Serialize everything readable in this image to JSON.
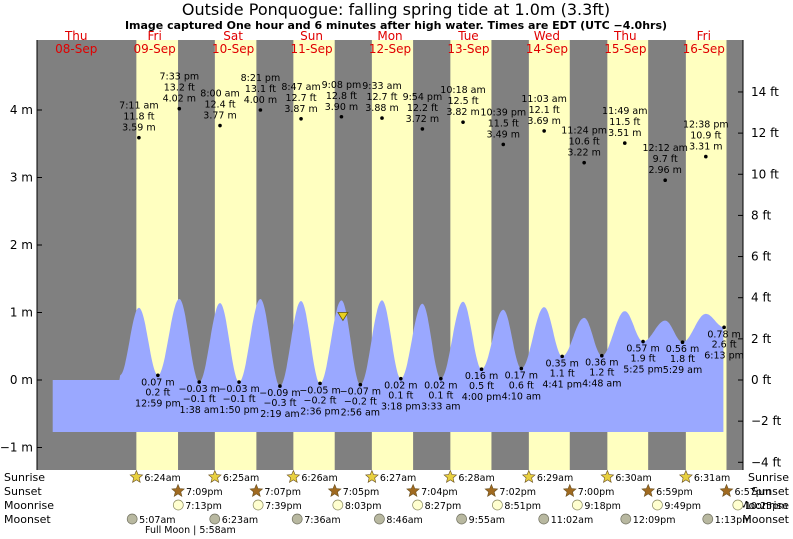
{
  "title": "Outside Ponquogue: falling  spring tide at 1.0m (3.3ft)",
  "subtitle": "Image captured One hour and 6 minutes after high water. Times are EDT (UTC −4.0hrs)",
  "colors": {
    "day": "#ffffc0",
    "night": "#808080",
    "water": "#9aa8ff",
    "marker": "#e8d020",
    "day_label": "#e00000",
    "sunrise": "#e8d040",
    "sunset": "#a06a20",
    "moonrise": "#ffffd0",
    "moonset": "#b8b8a0"
  },
  "days": [
    {
      "dow": "Thu",
      "date": "08-Sep"
    },
    {
      "dow": "Fri",
      "date": "09-Sep"
    },
    {
      "dow": "Sat",
      "date": "10-Sep"
    },
    {
      "dow": "Sun",
      "date": "11-Sep"
    },
    {
      "dow": "Mon",
      "date": "12-Sep"
    },
    {
      "dow": "Tue",
      "date": "13-Sep"
    },
    {
      "dow": "Wed",
      "date": "14-Sep"
    },
    {
      "dow": "Thu",
      "date": "15-Sep"
    },
    {
      "dow": "Fri",
      "date": "16-Sep"
    }
  ],
  "chart_data": {
    "type": "area",
    "title": "Outside Ponquogue: falling  spring tide at 1.0m (3.3ft)",
    "left_axis": {
      "unit": "m",
      "range": [
        -1.25,
        4.9
      ],
      "ticks": [
        -1,
        0,
        1,
        2,
        3,
        4
      ],
      "tick_labels": [
        "−1 m",
        "0 m",
        "1 m",
        "2 m",
        "3 m",
        "4 m"
      ]
    },
    "right_axis": {
      "unit": "ft",
      "ticks": [
        -4,
        -2,
        0,
        2,
        4,
        6,
        8,
        10,
        12,
        14
      ],
      "tick_labels": [
        "−4 ft",
        "−2 ft",
        "0 ft",
        "2 ft",
        "4 ft",
        "6 ft",
        "8 ft",
        "10 ft",
        "12 ft",
        "14 ft"
      ]
    },
    "plot_range_days": [
      0.2,
      8.75
    ],
    "current": {
      "t": 3.9,
      "h": 1.0
    },
    "sunrise_hours": [
      6.4,
      6.4167,
      6.4333,
      6.45,
      6.4667,
      6.4833,
      6.5,
      6.5167
    ],
    "sunset_hours": [
      19.15,
      19.1167,
      19.0833,
      19.0667,
      19.0333,
      19.0,
      18.9833,
      18.95
    ],
    "high_tides": [
      {
        "t": 1.299,
        "m": "3.59",
        "ft": "11.8 ft",
        "time": "7:11 am",
        "chart_m": 1.07
      },
      {
        "t": 1.814,
        "m": "4.02",
        "ft": "13.2 ft",
        "time": "7:33 pm",
        "chart_m": 1.2
      },
      {
        "t": 2.333,
        "m": "3.77",
        "ft": "12.4 ft",
        "time": "8:00 am",
        "chart_m": 1.14
      },
      {
        "t": 2.848,
        "m": "4.00",
        "ft": "13.1 ft",
        "time": "8:21 pm",
        "chart_m": 1.2
      },
      {
        "t": 3.366,
        "m": "3.87",
        "ft": "12.7 ft",
        "time": "8:47 am",
        "chart_m": 1.17
      },
      {
        "t": 3.881,
        "m": "3.90",
        "ft": "12.8 ft",
        "time": "9:08 pm",
        "chart_m": 1.18
      },
      {
        "t": 4.398,
        "m": "3.88",
        "ft": "12.7 ft",
        "time": "9:33 am",
        "chart_m": 1.18
      },
      {
        "t": 4.913,
        "m": "3.72",
        "ft": "12.2 ft",
        "time": "9:54 pm",
        "chart_m": 1.13
      },
      {
        "t": 5.431,
        "m": "3.82",
        "ft": "12.5 ft",
        "time": "10:18 am",
        "chart_m": 1.16
      },
      {
        "t": 5.944,
        "m": "3.49",
        "ft": "11.5 ft",
        "time": "10:39 pm",
        "chart_m": 1.04
      },
      {
        "t": 6.465,
        "m": "3.69",
        "ft": "12.1 ft",
        "time": "11:03 am",
        "chart_m": 1.08
      },
      {
        "t": 6.975,
        "m": "3.22",
        "ft": "10.6 ft",
        "time": "11:24 pm",
        "chart_m": 0.92
      },
      {
        "t": 7.493,
        "m": "3.51",
        "ft": "11.5 ft",
        "time": "11:49 am",
        "chart_m": 1.02
      },
      {
        "t": 8.008,
        "m": "2.96",
        "ft": "9.7 ft",
        "time": "12:12 am",
        "chart_m": 0.88
      },
      {
        "t": 8.526,
        "m": "3.31",
        "ft": "10.9 ft",
        "time": "12:38 pm",
        "chart_m": 0.98
      }
    ],
    "low_tides": [
      {
        "t": 1.541,
        "m": "0.07 m",
        "ft": "0.2 ft",
        "time": "12:59 pm"
      },
      {
        "t": 2.068,
        "m": "−0.03 m",
        "ft": "−0.1 ft",
        "time": "1:38 am"
      },
      {
        "t": 2.576,
        "m": "−0.03 m",
        "ft": "−0.1 ft",
        "time": "1:50 pm"
      },
      {
        "t": 3.097,
        "m": "−0.09 m",
        "ft": "−0.3 ft",
        "time": "2:19 am"
      },
      {
        "t": 3.608,
        "m": "−0.05 m",
        "ft": "−0.2 ft",
        "time": "2:36 pm"
      },
      {
        "t": 4.122,
        "m": "−0.07 m",
        "ft": "−0.2 ft",
        "time": "2:56 am"
      },
      {
        "t": 4.638,
        "m": "0.02 m",
        "ft": "0.1 ft",
        "time": "3:18 pm"
      },
      {
        "t": 5.148,
        "m": "0.02 m",
        "ft": "0.1 ft",
        "time": "3:33 am"
      },
      {
        "t": 5.667,
        "m": "0.16 m",
        "ft": "0.5 ft",
        "time": "4:00 pm"
      },
      {
        "t": 6.174,
        "m": "0.17 m",
        "ft": "0.6 ft",
        "time": "4:10 am"
      },
      {
        "t": 6.695,
        "m": "0.35 m",
        "ft": "1.1 ft",
        "time": "4:41 pm"
      },
      {
        "t": 7.2,
        "m": "0.36 m",
        "ft": "1.2 ft",
        "time": "4:48 am"
      },
      {
        "t": 7.726,
        "m": "0.57 m",
        "ft": "1.9 ft",
        "time": "5:25 pm"
      },
      {
        "t": 8.229,
        "m": "0.56 m",
        "ft": "1.8 ft",
        "time": "5:29 am"
      },
      {
        "t": 8.759,
        "m": "0.78 m",
        "ft": "2.6 ft",
        "time": "6:13 pm"
      }
    ]
  },
  "astro": {
    "row_labels": [
      "Sunrise",
      "Sunset",
      "Moonrise",
      "Moonset"
    ],
    "sunrise": [
      {
        "t": 1.267,
        "label": "6:24am"
      },
      {
        "t": 2.267,
        "label": "6:25am"
      },
      {
        "t": 3.268,
        "label": "6:26am"
      },
      {
        "t": 4.269,
        "label": "6:27am"
      },
      {
        "t": 5.269,
        "label": "6:28am"
      },
      {
        "t": 6.27,
        "label": "6:29am"
      },
      {
        "t": 7.271,
        "label": "6:30am"
      },
      {
        "t": 8.272,
        "label": "6:31am"
      }
    ],
    "sunset": [
      {
        "t": 1.798,
        "label": "7:09pm"
      },
      {
        "t": 2.796,
        "label": "7:07pm"
      },
      {
        "t": 3.795,
        "label": "7:05pm"
      },
      {
        "t": 4.794,
        "label": "7:04pm"
      },
      {
        "t": 5.793,
        "label": "7:02pm"
      },
      {
        "t": 6.792,
        "label": "7:00pm"
      },
      {
        "t": 7.791,
        "label": "6:59pm"
      },
      {
        "t": 8.79,
        "label": "6:57pm"
      }
    ],
    "moonrise": [
      {
        "t": 1.801,
        "label": "7:13pm"
      },
      {
        "t": 2.819,
        "label": "7:39pm"
      },
      {
        "t": 3.835,
        "label": "8:03pm"
      },
      {
        "t": 4.852,
        "label": "8:27pm"
      },
      {
        "t": 5.869,
        "label": "8:51pm"
      },
      {
        "t": 6.888,
        "label": "9:18pm"
      },
      {
        "t": 7.909,
        "label": "9:49pm"
      },
      {
        "t": 8.934,
        "label": "10:25pm"
      }
    ],
    "moonset": [
      {
        "t": 1.213,
        "label": "5:07am"
      },
      {
        "t": 2.266,
        "label": "6:23am"
      },
      {
        "t": 3.317,
        "label": "7:36am"
      },
      {
        "t": 4.365,
        "label": "8:46am"
      },
      {
        "t": 5.413,
        "label": "9:55am"
      },
      {
        "t": 6.46,
        "label": "11:02am"
      },
      {
        "t": 7.506,
        "label": "12:09pm"
      },
      {
        "t": 8.551,
        "label": "1:13pm"
      }
    ],
    "full_moon": "Full Moon | 5:58am"
  }
}
